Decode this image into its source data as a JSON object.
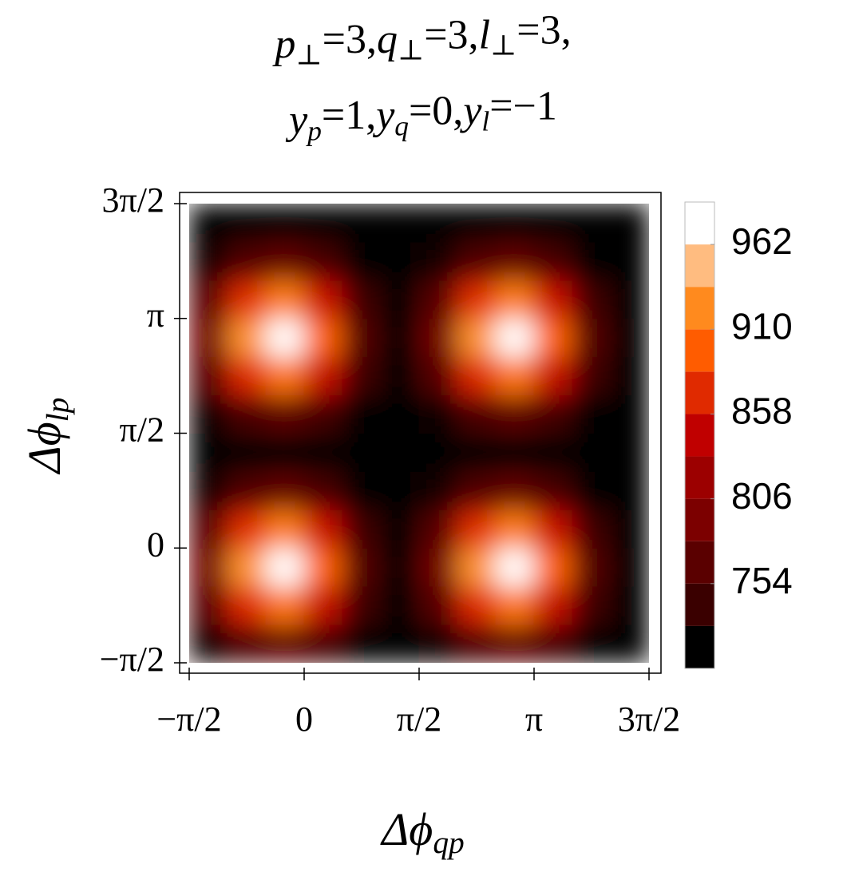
{
  "chart_data": {
    "type": "heatmap",
    "title_lines": [
      [
        {
          "base": "p",
          "sub": "⊥",
          "text": "=3,"
        },
        {
          "base": "q",
          "sub": "⊥",
          "text": "=3,"
        },
        {
          "base": "l",
          "sub": "⊥",
          "text": "=3,"
        }
      ],
      [
        {
          "base": "y",
          "sub": "p",
          "text": "=1,"
        },
        {
          "base": "y",
          "sub": "q",
          "text": "=0,"
        },
        {
          "base": "y",
          "sub": "l",
          "text": "=−1"
        }
      ]
    ],
    "x_label": {
      "base": "Δϕ",
      "sub": "qp"
    },
    "y_label": {
      "base": "Δϕ",
      "sub": "lp"
    },
    "x": [
      -1.309,
      -0.785,
      -0.262,
      0.262,
      0.785,
      1.309,
      1.833,
      2.356,
      2.88,
      3.403,
      3.927,
      4.451
    ],
    "y": [
      -1.309,
      -0.785,
      -0.262,
      0.262,
      0.785,
      1.309,
      1.833,
      2.356,
      2.88,
      3.403,
      3.927,
      4.451
    ],
    "z": [
      [
        722,
        756,
        770,
        750,
        716,
        702,
        722,
        756,
        770,
        750,
        716,
        702
      ],
      [
        764,
        869,
        912,
        850,
        745,
        703,
        764,
        869,
        912,
        850,
        745,
        703
      ],
      [
        786,
        928,
        985,
        902,
        761,
        703,
        786,
        928,
        985,
        902,
        761,
        703
      ],
      [
        766,
        873,
        917,
        854,
        747,
        703,
        766,
        873,
        917,
        854,
        747,
        703
      ],
      [
        724,
        760,
        775,
        754,
        717,
        702,
        724,
        760,
        775,
        754,
        717,
        702
      ],
      [
        702,
        702,
        702,
        702,
        702,
        702,
        702,
        702,
        702,
        702,
        702,
        702
      ],
      [
        722,
        756,
        770,
        750,
        716,
        702,
        722,
        756,
        770,
        750,
        716,
        702
      ],
      [
        764,
        869,
        912,
        850,
        745,
        703,
        764,
        869,
        912,
        850,
        745,
        703
      ],
      [
        786,
        928,
        985,
        902,
        761,
        703,
        786,
        928,
        985,
        902,
        761,
        703
      ],
      [
        766,
        873,
        917,
        854,
        747,
        703,
        766,
        873,
        917,
        854,
        747,
        703
      ],
      [
        724,
        760,
        775,
        754,
        717,
        702,
        724,
        760,
        775,
        754,
        717,
        702
      ],
      [
        702,
        702,
        702,
        702,
        702,
        702,
        702,
        702,
        702,
        702,
        702,
        702
      ]
    ],
    "xlim": [
      -1.5708,
      4.7124
    ],
    "ylim": [
      -1.5708,
      4.7124
    ],
    "xticks": [
      {
        "value": -1.5708,
        "label": "−π/2"
      },
      0,
      {
        "value": 1.5708,
        "label": "π/2"
      },
      {
        "value": 3.1416,
        "label": "π"
      },
      {
        "value": 4.7124,
        "label": "3π/2"
      }
    ],
    "yticks": [
      {
        "value": -1.5708,
        "label": "−π/2"
      },
      0,
      {
        "value": 1.5708,
        "label": "π/2"
      },
      {
        "value": 3.1416,
        "label": "π"
      },
      {
        "value": 4.7124,
        "label": "3π/2"
      }
    ],
    "colorbar": {
      "lim": [
        702,
        988
      ],
      "ticks": [
        754,
        806,
        858,
        910,
        962
      ],
      "levels": [
        702,
        728,
        754,
        780,
        806,
        832,
        858,
        884,
        910,
        936,
        962,
        988
      ],
      "colors": [
        "#000000",
        "#3a0000",
        "#5a0000",
        "#7c0000",
        "#9c0000",
        "#c00000",
        "#e02a00",
        "#ff5c00",
        "#ff8a1e",
        "#ffbc80",
        "#ffffff"
      ]
    }
  }
}
